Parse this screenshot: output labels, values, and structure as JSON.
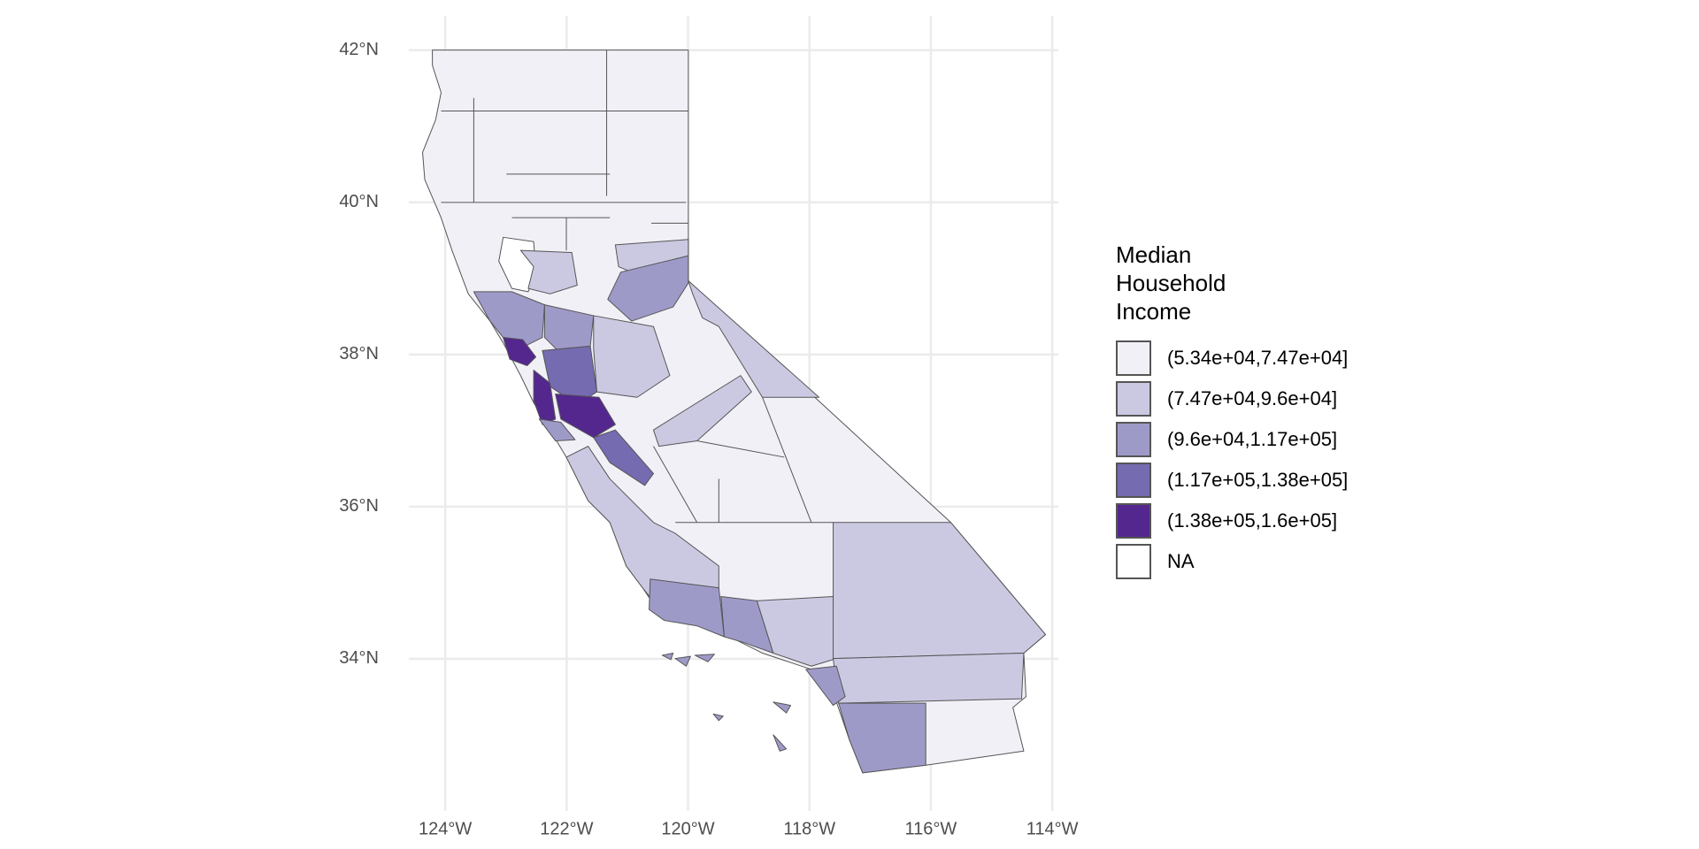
{
  "chart_data": {
    "type": "choropleth",
    "xlim": [
      -124.6,
      -113.9
    ],
    "ylim": [
      32,
      42.45
    ],
    "xticks": [
      {
        "value": -124,
        "label": "124°W"
      },
      {
        "value": -122,
        "label": "122°W"
      },
      {
        "value": -120,
        "label": "120°W"
      },
      {
        "value": -118,
        "label": "118°W"
      },
      {
        "value": -116,
        "label": "116°W"
      },
      {
        "value": -114,
        "label": "114°W"
      }
    ],
    "yticks": [
      {
        "value": 34,
        "label": "34°N"
      },
      {
        "value": 36,
        "label": "36°N"
      },
      {
        "value": 38,
        "label": "38°N"
      },
      {
        "value": 40,
        "label": "40°N"
      },
      {
        "value": 42,
        "label": "42°N"
      }
    ],
    "grid": true,
    "legend_title": "Median Household Income",
    "legend": [
      {
        "label": "(5.34e+04,7.47e+04]",
        "color": "#f2f0f7"
      },
      {
        "label": "(7.47e+04,9.6e+04]",
        "color": "#cbc9e2"
      },
      {
        "label": "(9.6e+04,1.17e+05]",
        "color": "#9e9ac8"
      },
      {
        "label": "(1.17e+05,1.38e+05]",
        "color": "#756bb1"
      },
      {
        "label": "(1.38e+05,1.6e+05]",
        "color": "#54278f"
      },
      {
        "label": "NA",
        "color": "#ffffff"
      }
    ]
  }
}
